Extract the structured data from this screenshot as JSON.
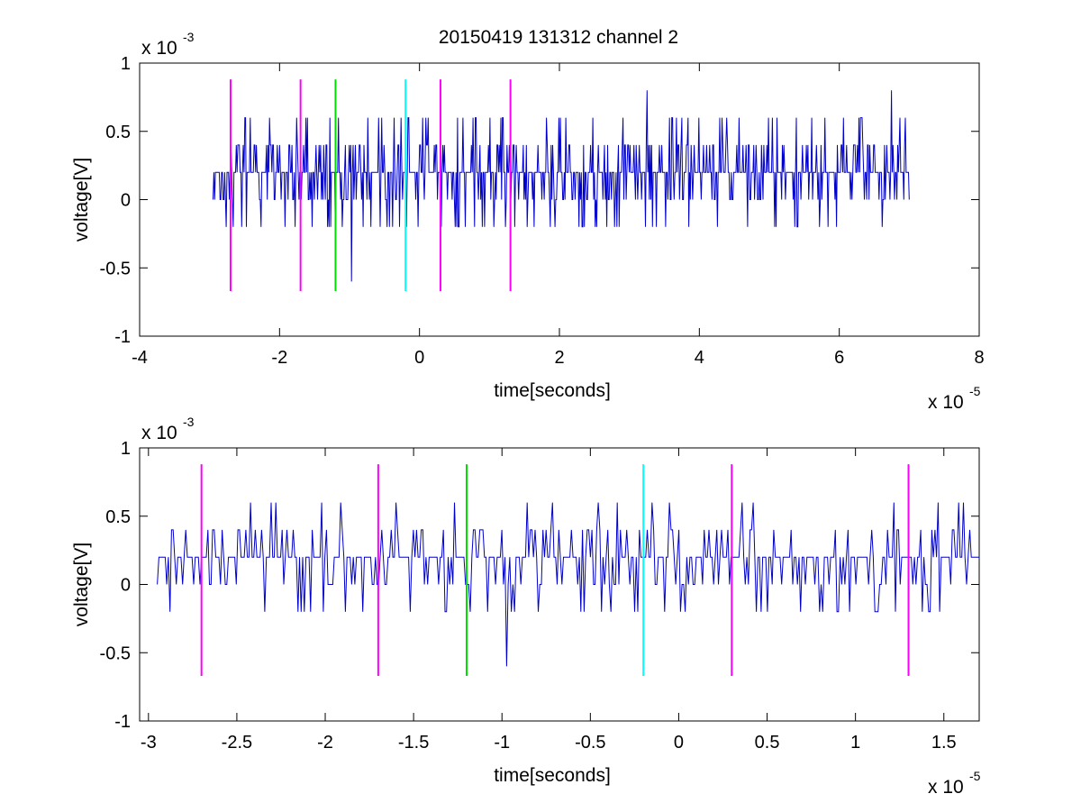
{
  "figure": {
    "title": "20150419 131312 channel 2"
  },
  "colors": {
    "signal": "#0000cc",
    "magenta": "#ff00ff",
    "green": "#00dd00",
    "cyan": "#00ffff",
    "axes": "#000000",
    "background": "#ffffff"
  },
  "chart_data": [
    {
      "type": "line",
      "title": "20150419 131312 channel 2",
      "xlabel": "time[seconds]",
      "ylabel": "voltage[V]",
      "x_multiplier_label": "x 10",
      "x_multiplier_exp": "-5",
      "y_multiplier_label": "x 10",
      "y_multiplier_exp": "-3",
      "xlim": [
        -4,
        8
      ],
      "ylim": [
        -1,
        1
      ],
      "xticks": [
        -4,
        -2,
        0,
        2,
        4,
        6,
        8
      ],
      "xtick_labels": [
        "-4",
        "-2",
        "0",
        "2",
        "4",
        "6",
        "8"
      ],
      "yticks": [
        -1,
        -0.5,
        0,
        0.5,
        1
      ],
      "ytick_labels": [
        "-1",
        "-0.5",
        "0",
        "0.5",
        "1"
      ],
      "grid": false,
      "legend": "none",
      "series": [
        {
          "color": "#0000cc",
          "x_range": [
            -2.95,
            7.0
          ],
          "levels": [
            -0.6,
            -0.2,
            0,
            0.2,
            0.4,
            0.6,
            0.8
          ],
          "note_peaks": [
            [
              -0.97,
              -0.6
            ],
            [
              3.25,
              0.8
            ],
            [
              6.75,
              0.8
            ]
          ]
        }
      ],
      "markers": [
        {
          "x": -2.7,
          "y0": -0.67,
          "y1": 0.88,
          "color": "magenta"
        },
        {
          "x": -1.7,
          "y0": -0.67,
          "y1": 0.88,
          "color": "magenta"
        },
        {
          "x": -1.2,
          "y0": -0.67,
          "y1": 0.88,
          "color": "green"
        },
        {
          "x": -0.2,
          "y0": -0.67,
          "y1": 0.88,
          "color": "cyan"
        },
        {
          "x": 0.3,
          "y0": -0.67,
          "y1": 0.88,
          "color": "magenta"
        },
        {
          "x": 1.3,
          "y0": -0.67,
          "y1": 0.88,
          "color": "magenta"
        }
      ]
    },
    {
      "type": "line",
      "title": "",
      "xlabel": "time[seconds]",
      "ylabel": "voltage[V]",
      "x_multiplier_label": "x 10",
      "x_multiplier_exp": "-5",
      "y_multiplier_label": "x 10",
      "y_multiplier_exp": "-3",
      "xlim": [
        -3.05,
        1.7
      ],
      "ylim": [
        -1,
        1
      ],
      "xticks": [
        -3,
        -2.5,
        -2,
        -1.5,
        -1,
        -0.5,
        0,
        0.5,
        1,
        1.5
      ],
      "xtick_labels": [
        "-3",
        "-2.5",
        "-2",
        "-1.5",
        "-1",
        "-0.5",
        "0",
        "0.5",
        "1",
        "1.5"
      ],
      "yticks": [
        -1,
        -0.5,
        0,
        0.5,
        1
      ],
      "ytick_labels": [
        "-1",
        "-0.5",
        "0",
        "0.5",
        "1"
      ],
      "grid": false,
      "legend": "none",
      "series": [
        {
          "color": "#0000cc",
          "x_range": [
            -2.95,
            1.7
          ],
          "levels": [
            -0.6,
            -0.2,
            0,
            0.2,
            0.4,
            0.6
          ],
          "note_peaks": [
            [
              -0.97,
              -0.6
            ]
          ]
        }
      ],
      "markers": [
        {
          "x": -2.7,
          "y0": -0.67,
          "y1": 0.88,
          "color": "magenta"
        },
        {
          "x": -1.7,
          "y0": -0.67,
          "y1": 0.88,
          "color": "magenta"
        },
        {
          "x": -1.2,
          "y0": -0.67,
          "y1": 0.88,
          "color": "green"
        },
        {
          "x": -0.2,
          "y0": -0.67,
          "y1": 0.88,
          "color": "cyan"
        },
        {
          "x": 0.3,
          "y0": -0.67,
          "y1": 0.88,
          "color": "magenta"
        },
        {
          "x": 1.3,
          "y0": -0.67,
          "y1": 0.88,
          "color": "magenta"
        }
      ]
    }
  ]
}
